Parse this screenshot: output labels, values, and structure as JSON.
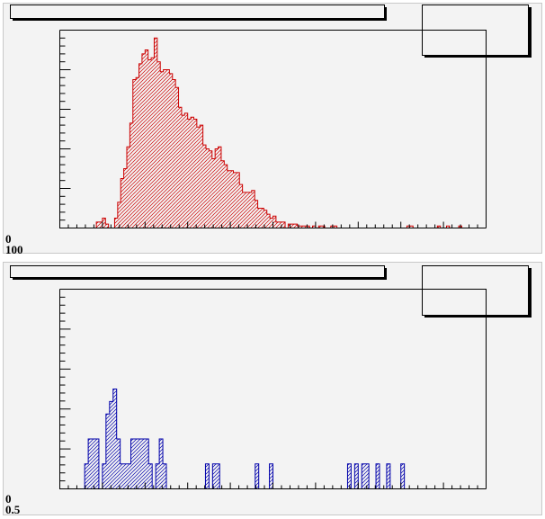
{
  "chart_data": [
    {
      "type": "bar",
      "title": "",
      "xlabel": "",
      "ylabel": "",
      "line_color": "#cc0000",
      "fill_pattern": "hatched",
      "grid": false,
      "legend": "none",
      "ylim": [
        0,
        100
      ],
      "y_tick_labels": [
        "0",
        "100"
      ],
      "values": [
        0,
        0,
        0,
        0,
        0,
        0,
        0,
        0,
        0,
        0,
        0,
        0,
        3,
        3,
        5,
        2,
        0,
        0,
        5,
        13,
        25,
        30,
        41,
        53,
        75,
        76,
        83,
        88,
        90,
        85,
        86,
        96,
        84,
        79,
        80,
        80,
        78,
        75,
        71,
        61,
        57,
        58,
        55,
        56,
        55,
        51,
        52,
        42,
        40,
        39,
        35,
        40,
        41,
        34,
        32,
        29,
        29,
        28,
        28,
        22,
        18,
        18,
        18,
        19,
        14,
        10,
        10,
        9,
        7,
        5,
        6,
        3,
        3,
        3,
        0,
        2,
        2,
        2,
        1,
        1,
        1,
        1,
        0,
        1,
        0,
        1,
        1,
        0,
        0,
        1,
        1,
        0,
        0,
        0,
        0,
        0,
        0,
        0,
        0,
        0,
        0,
        0,
        0,
        0,
        0,
        0,
        0,
        0,
        0,
        0,
        0,
        0,
        0,
        0,
        1,
        1,
        0,
        0,
        0,
        0,
        0,
        0,
        0,
        0,
        1,
        0,
        0,
        1,
        0,
        0,
        0,
        1,
        0,
        0,
        0,
        0,
        0,
        0,
        0,
        0
      ]
    },
    {
      "type": "bar",
      "title": "",
      "xlabel": "",
      "ylabel": "",
      "line_color": "#0000aa",
      "fill_pattern": "hatched",
      "grid": false,
      "legend": "none",
      "ylim": [
        0,
        8
      ],
      "y_tick_labels": [
        "0",
        "0.5"
      ],
      "values": [
        0,
        0,
        0,
        0,
        0,
        0,
        0,
        1,
        2,
        2,
        2,
        0,
        1,
        3,
        3.5,
        4,
        2,
        1,
        1,
        1,
        2,
        2,
        2,
        2,
        2,
        1,
        0,
        1,
        2,
        1,
        0,
        0,
        0,
        0,
        0,
        0,
        0,
        0,
        0,
        0,
        0,
        1,
        0,
        1,
        1,
        0,
        0,
        0,
        0,
        0,
        0,
        0,
        0,
        0,
        0,
        1,
        0,
        0,
        0,
        1,
        0,
        0,
        0,
        0,
        0,
        0,
        0,
        0,
        0,
        0,
        0,
        0,
        0,
        0,
        0,
        0,
        0,
        0,
        0,
        0,
        0,
        1,
        0,
        1,
        0,
        1,
        1,
        0,
        0,
        1,
        0,
        0,
        1,
        0,
        0,
        0,
        1,
        0,
        0,
        0,
        0,
        0,
        0,
        0,
        0,
        0,
        0,
        0,
        0,
        0,
        0,
        0,
        0,
        0,
        0,
        0,
        0,
        0,
        0,
        0
      ]
    }
  ]
}
